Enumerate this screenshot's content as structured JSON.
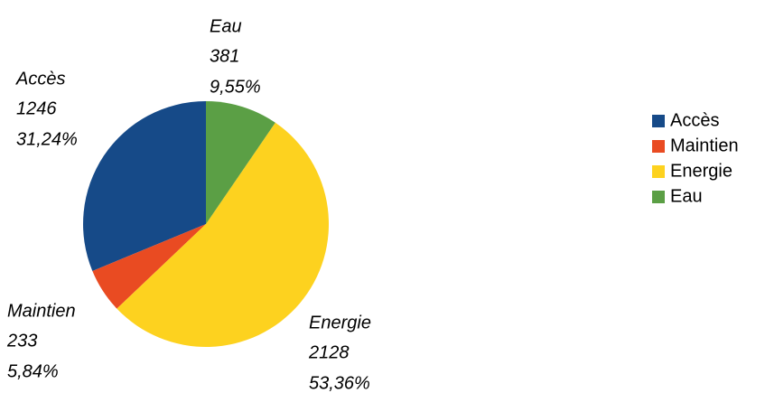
{
  "chart_data": {
    "type": "pie",
    "categories": [
      "Accès",
      "Maintien",
      "Energie",
      "Eau"
    ],
    "values": [
      1246,
      233,
      2128,
      381
    ],
    "percentages": [
      31.24,
      5.84,
      53.36,
      9.55
    ],
    "percentage_labels": [
      "31,24%",
      "5,84%",
      "53,36%",
      "9,55%"
    ],
    "colors": [
      "#164a88",
      "#e94b22",
      "#fdd21f",
      "#5b9f45"
    ],
    "direction": "counterclockwise",
    "start": "top",
    "legend": "right"
  }
}
